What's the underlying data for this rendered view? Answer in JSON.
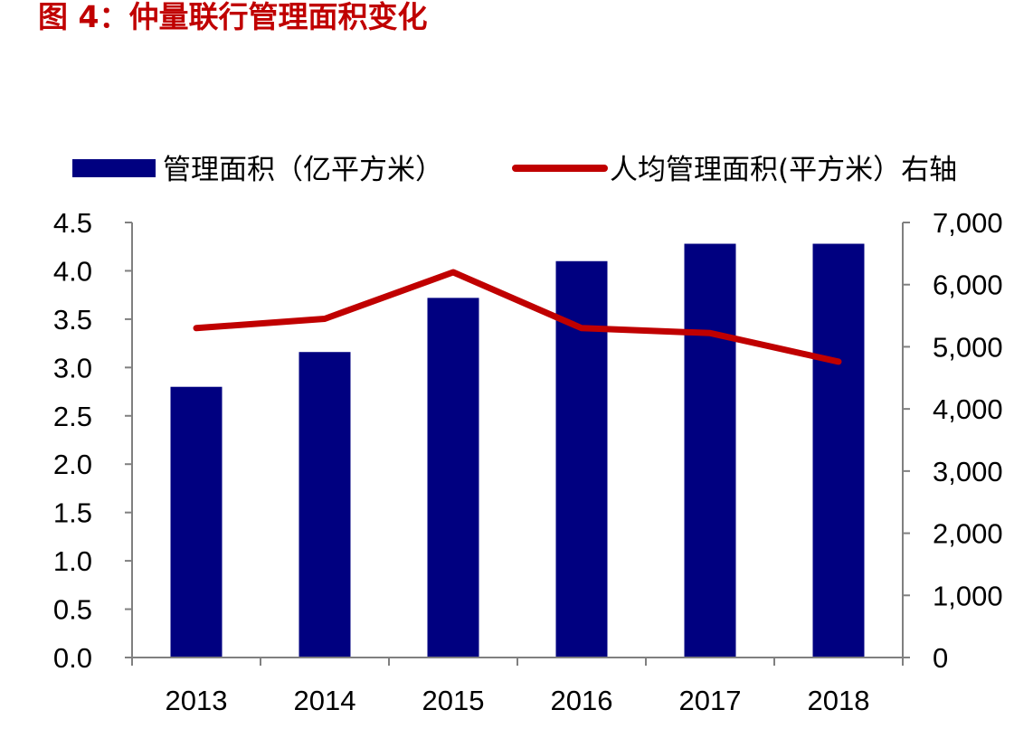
{
  "figure_title": "图 4：仲量联行管理面积变化",
  "colors": {
    "bar": "#000080",
    "line": "#c00000",
    "title": "#c00000",
    "axis": "#808080",
    "text": "#000000"
  },
  "chart_data": {
    "type": "bar",
    "categories": [
      "2013",
      "2014",
      "2015",
      "2016",
      "2017",
      "2018"
    ],
    "series": [
      {
        "name": "管理面积（亿平方米）",
        "type": "bar",
        "axis": "left",
        "values": [
          2.8,
          3.16,
          3.72,
          4.1,
          4.28,
          4.28
        ]
      },
      {
        "name": "人均管理面积(平方米）右轴",
        "type": "line",
        "axis": "right",
        "values": [
          5300,
          5450,
          6200,
          5300,
          5220,
          4760
        ]
      }
    ],
    "y_left": {
      "min": 0,
      "max": 4.5,
      "ticks": [
        "0.0",
        "0.5",
        "1.0",
        "1.5",
        "2.0",
        "2.5",
        "3.0",
        "3.5",
        "4.0",
        "4.5"
      ]
    },
    "y_right": {
      "min": 0,
      "max": 7000,
      "ticks": [
        "0",
        "1,000",
        "2,000",
        "3,000",
        "4,000",
        "5,000",
        "6,000",
        "7,000"
      ]
    },
    "grid": false,
    "legend": "top"
  }
}
